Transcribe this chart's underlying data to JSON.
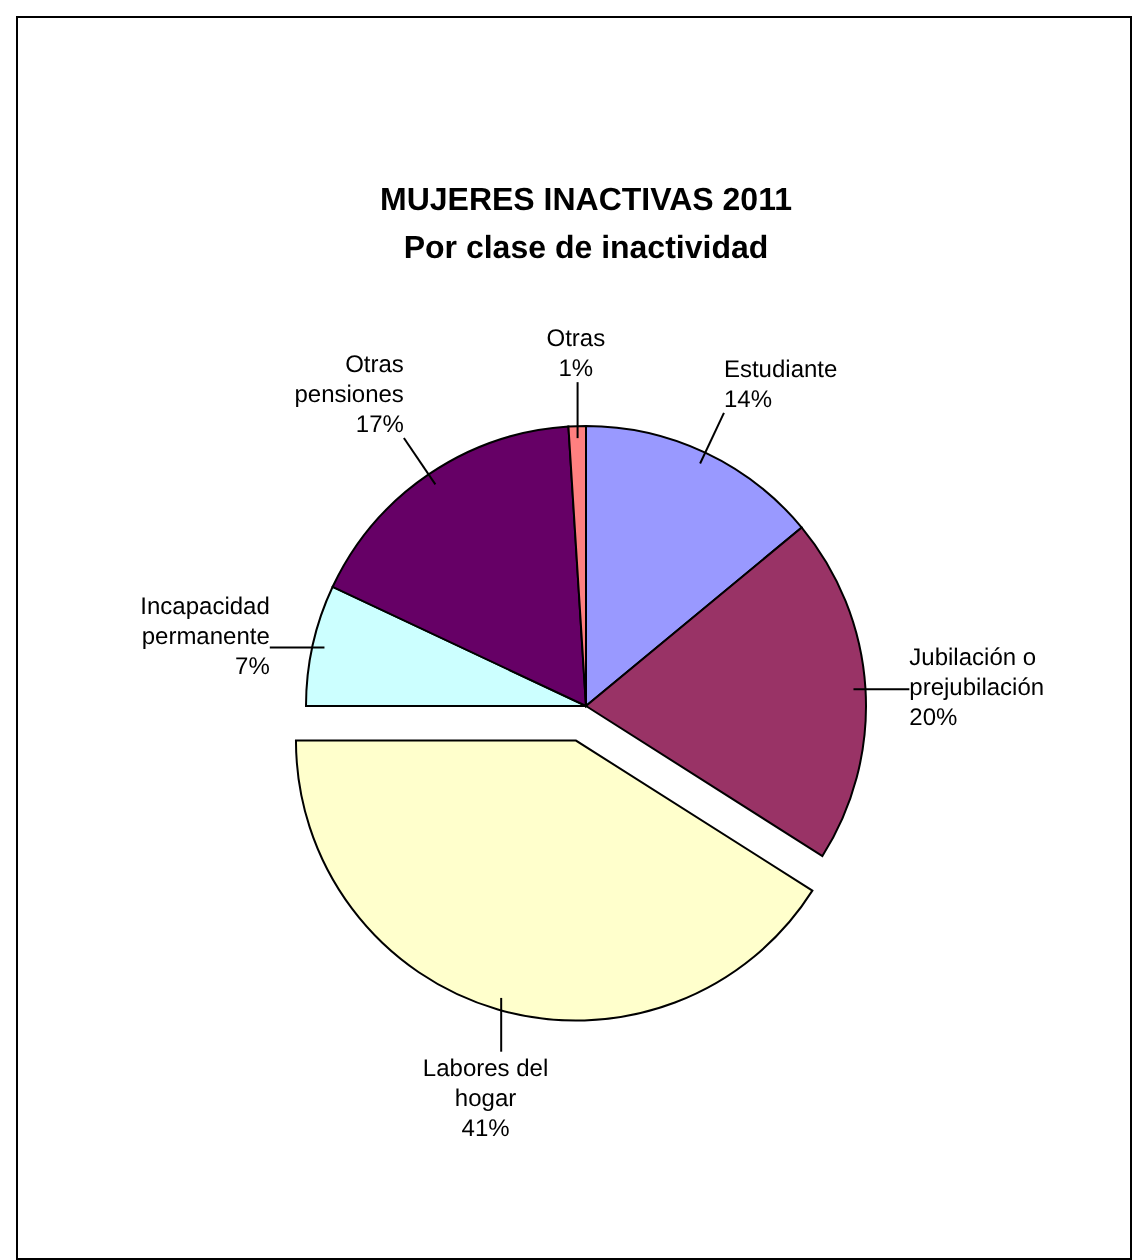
{
  "chart_data": {
    "type": "pie",
    "title": "MUJERES INACTIVAS 2011",
    "subtitle": "Por clase de inactividad",
    "categories": [
      "Estudiante",
      "Jubilación o prejubilación",
      "Labores del hogar",
      "Incapacidad permanente",
      "Otras pensiones",
      "Otras"
    ],
    "values": [
      14,
      20,
      41,
      7,
      17,
      1
    ],
    "colors": [
      "#9999ff",
      "#993366",
      "#ffffcc",
      "#ccffff",
      "#660066",
      "#ff8080"
    ],
    "value_labels": [
      "14%",
      "20%",
      "41%",
      "7%",
      "17%",
      "1%"
    ]
  }
}
